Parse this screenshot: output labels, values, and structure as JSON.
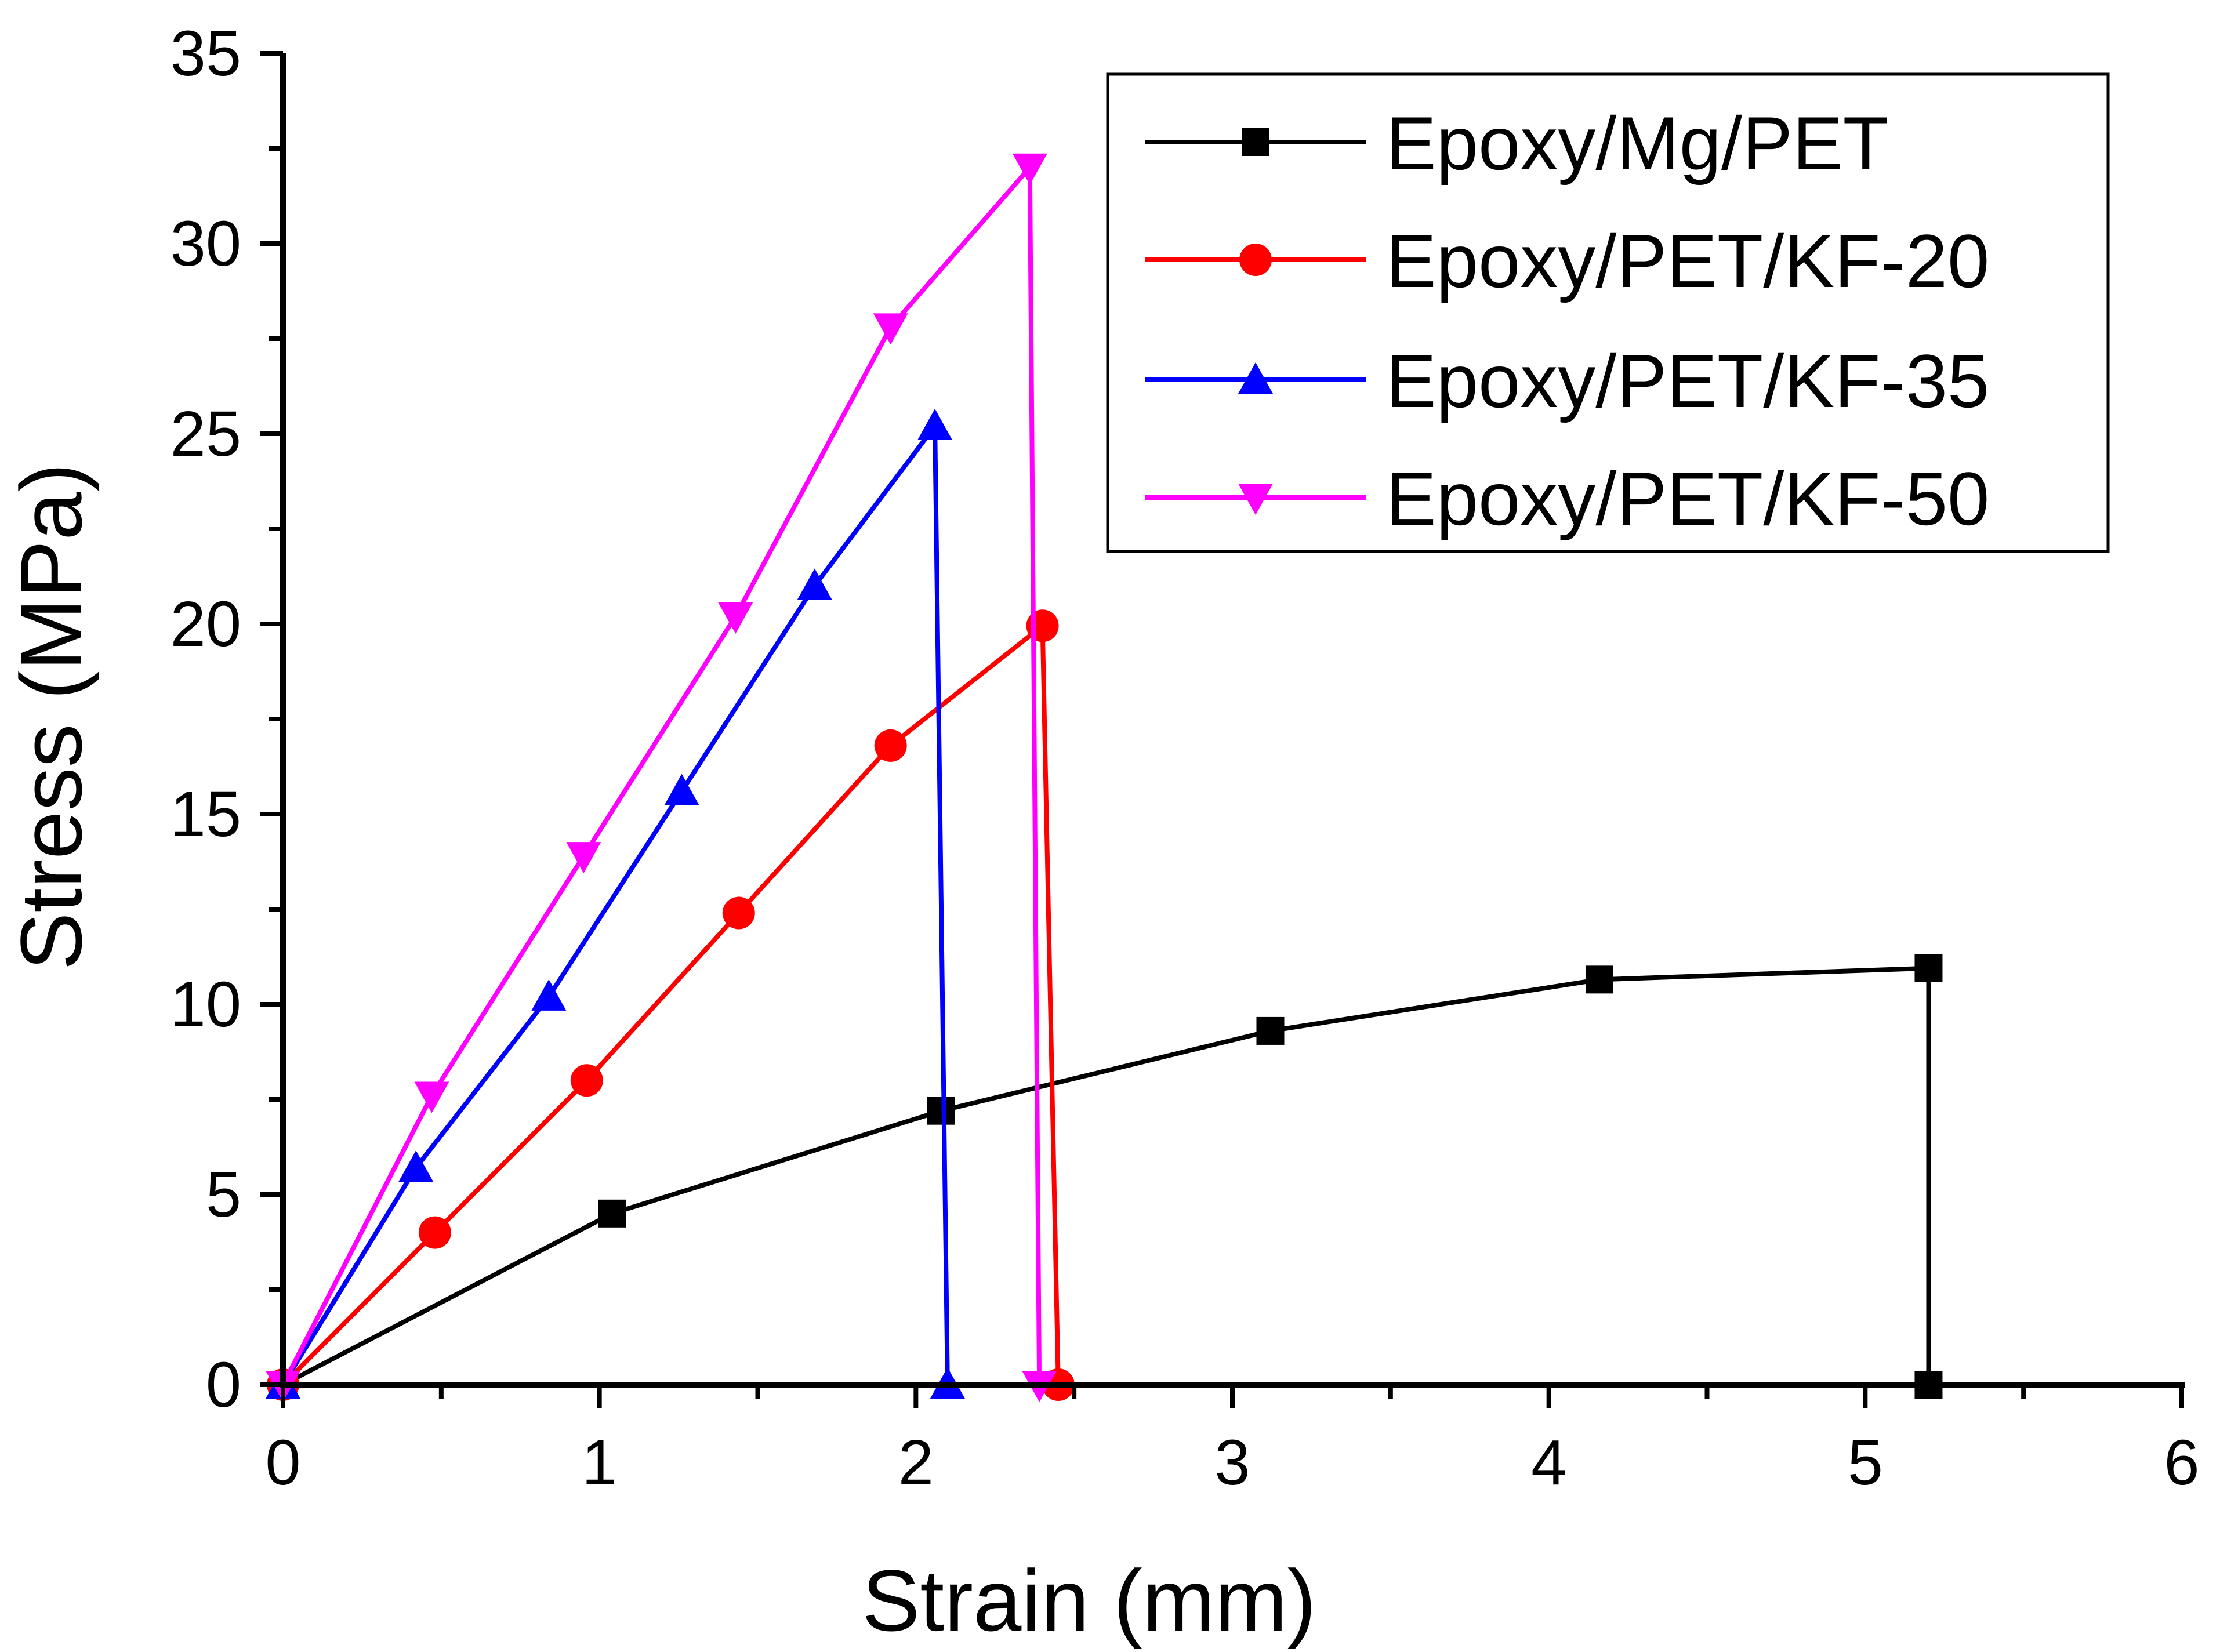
{
  "chart_data": {
    "type": "line",
    "title": "",
    "xlabel": "Strain (mm)",
    "ylabel": "Stress (MPa)",
    "xlim": [
      0,
      6
    ],
    "ylim": [
      0,
      35
    ],
    "x_ticks": [
      0,
      1,
      2,
      3,
      4,
      5,
      6
    ],
    "y_ticks": [
      0,
      5,
      10,
      15,
      20,
      25,
      30,
      35
    ],
    "x_tick_labels": [
      "0",
      "1",
      "2",
      "3",
      "4",
      "5",
      "6"
    ],
    "y_tick_labels": [
      "0",
      "5",
      "10",
      "15",
      "20",
      "25",
      "30",
      "35"
    ],
    "grid": false,
    "legend_position": "top-right",
    "series": [
      {
        "name": "Epoxy/Mg/PET",
        "color": "#000000",
        "marker": "square",
        "x": [
          0,
          1.04,
          2.08,
          3.12,
          4.16,
          5.2,
          5.2
        ],
        "y": [
          0,
          4.5,
          7.2,
          9.3,
          10.65,
          10.95,
          0
        ]
      },
      {
        "name": "Epoxy/PET/KF-20",
        "color": "#ff0000",
        "marker": "circle",
        "x": [
          0,
          0.48,
          0.96,
          1.44,
          1.92,
          2.4,
          2.45
        ],
        "y": [
          0,
          4.0,
          8.0,
          12.4,
          16.8,
          19.95,
          0
        ]
      },
      {
        "name": "Epoxy/PET/KF-35",
        "color": "#0000ff",
        "marker": "triangle-up",
        "x": [
          0,
          0.42,
          0.84,
          1.26,
          1.68,
          2.06,
          2.1
        ],
        "y": [
          0,
          5.7,
          10.2,
          15.6,
          21.0,
          25.2,
          0
        ]
      },
      {
        "name": "Epoxy/PET/KF-50",
        "color": "#ff00ff",
        "marker": "triangle-down",
        "x": [
          0,
          0.47,
          0.95,
          1.43,
          1.92,
          2.36,
          2.39
        ],
        "y": [
          0,
          7.6,
          13.9,
          20.2,
          27.8,
          32.0,
          0
        ]
      }
    ]
  }
}
